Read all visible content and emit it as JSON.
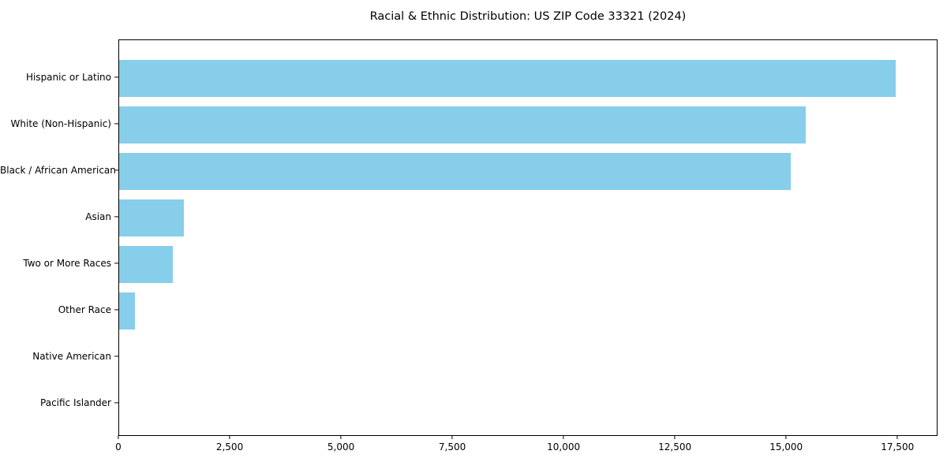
{
  "chart_data": {
    "type": "bar",
    "orientation": "horizontal",
    "title": "Racial & Ethnic Distribution: US ZIP Code 33321 (2024)",
    "categories": [
      "Hispanic or Latino",
      "White (Non-Hispanic)",
      "Black / African American",
      "Asian",
      "Two or More Races",
      "Other Race",
      "Native American",
      "Pacific Islander"
    ],
    "values": [
      17480,
      15460,
      15120,
      1450,
      1200,
      350,
      0,
      0
    ],
    "xlabel": "",
    "ylabel": "",
    "xlim": [
      0,
      18400
    ],
    "xticks": [
      0,
      2500,
      5000,
      7500,
      10000,
      12500,
      15000,
      17500
    ],
    "xtick_labels": [
      "0",
      "2,500",
      "5,000",
      "7,500",
      "10,000",
      "12,500",
      "15,000",
      "17,500"
    ],
    "bar_color": "#87CEEB",
    "grid": false,
    "legend": null
  }
}
